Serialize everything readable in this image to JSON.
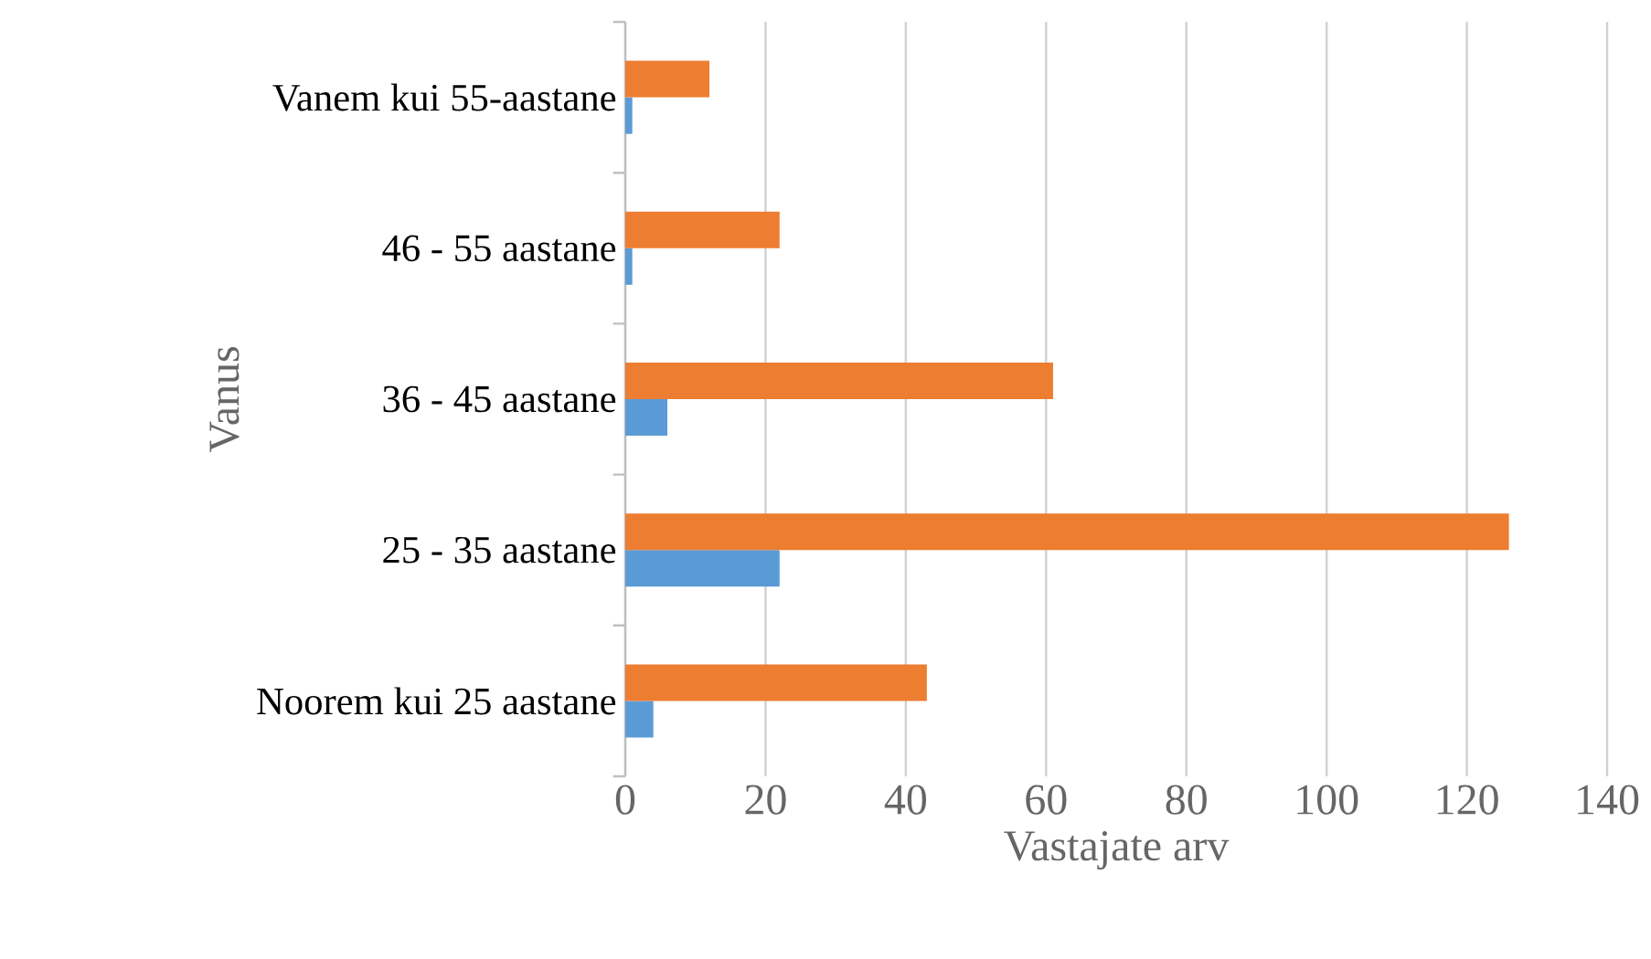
{
  "chart_data": {
    "type": "bar",
    "orientation": "horizontal",
    "xlabel": "Vastajate arv",
    "ylabel": "Vanus",
    "categories": [
      "Vanem kui 55-aastane",
      "46 - 55 aastane",
      "36 - 45 aastane",
      "25 - 35 aastane",
      "Noorem kui 25 aastane"
    ],
    "series": [
      {
        "color": "#5b9bd5",
        "values": [
          1,
          1,
          6,
          22,
          4
        ]
      },
      {
        "color": "#ed7d31",
        "values": [
          12,
          22,
          61,
          126,
          43
        ]
      }
    ],
    "xlim": [
      0,
      140
    ],
    "xticks": [
      0,
      20,
      40,
      60,
      80,
      100,
      120,
      140
    ],
    "grid": "x"
  }
}
